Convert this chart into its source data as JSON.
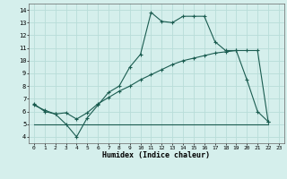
{
  "xlabel": "Humidex (Indice chaleur)",
  "bg_color": "#d5efec",
  "grid_color": "#b8ddd8",
  "line_color": "#1a5c50",
  "xlim": [
    -0.5,
    23.5
  ],
  "ylim": [
    3.5,
    14.5
  ],
  "xticks": [
    0,
    1,
    2,
    3,
    4,
    5,
    6,
    7,
    8,
    9,
    10,
    11,
    12,
    13,
    14,
    15,
    16,
    17,
    18,
    19,
    20,
    21,
    22,
    23
  ],
  "yticks": [
    4,
    5,
    6,
    7,
    8,
    9,
    10,
    11,
    12,
    13,
    14
  ],
  "series1_x": [
    0,
    1,
    2,
    3,
    4,
    5,
    6,
    7,
    8,
    9,
    10,
    11,
    12,
    13,
    14,
    15,
    16,
    17,
    18,
    19,
    20,
    21,
    22
  ],
  "series1_y": [
    6.6,
    6.0,
    5.8,
    5.0,
    4.0,
    5.5,
    6.5,
    7.5,
    8.0,
    9.5,
    10.5,
    13.8,
    13.1,
    13.0,
    13.5,
    13.5,
    13.5,
    11.5,
    10.8,
    10.8,
    8.5,
    6.0,
    5.2
  ],
  "series2_x": [
    0,
    1,
    2,
    3,
    4,
    5,
    6,
    7,
    8,
    9,
    10,
    11,
    12,
    13,
    14,
    15,
    16,
    17,
    18,
    19,
    20,
    21,
    22
  ],
  "series2_y": [
    6.5,
    6.1,
    5.8,
    5.9,
    5.4,
    5.9,
    6.6,
    7.1,
    7.6,
    8.0,
    8.5,
    8.9,
    9.3,
    9.7,
    10.0,
    10.2,
    10.4,
    10.6,
    10.7,
    10.8,
    10.8,
    10.8,
    5.2
  ],
  "series3_x": [
    0,
    3,
    14,
    22
  ],
  "series3_y": [
    5.0,
    5.0,
    5.0,
    5.0
  ]
}
